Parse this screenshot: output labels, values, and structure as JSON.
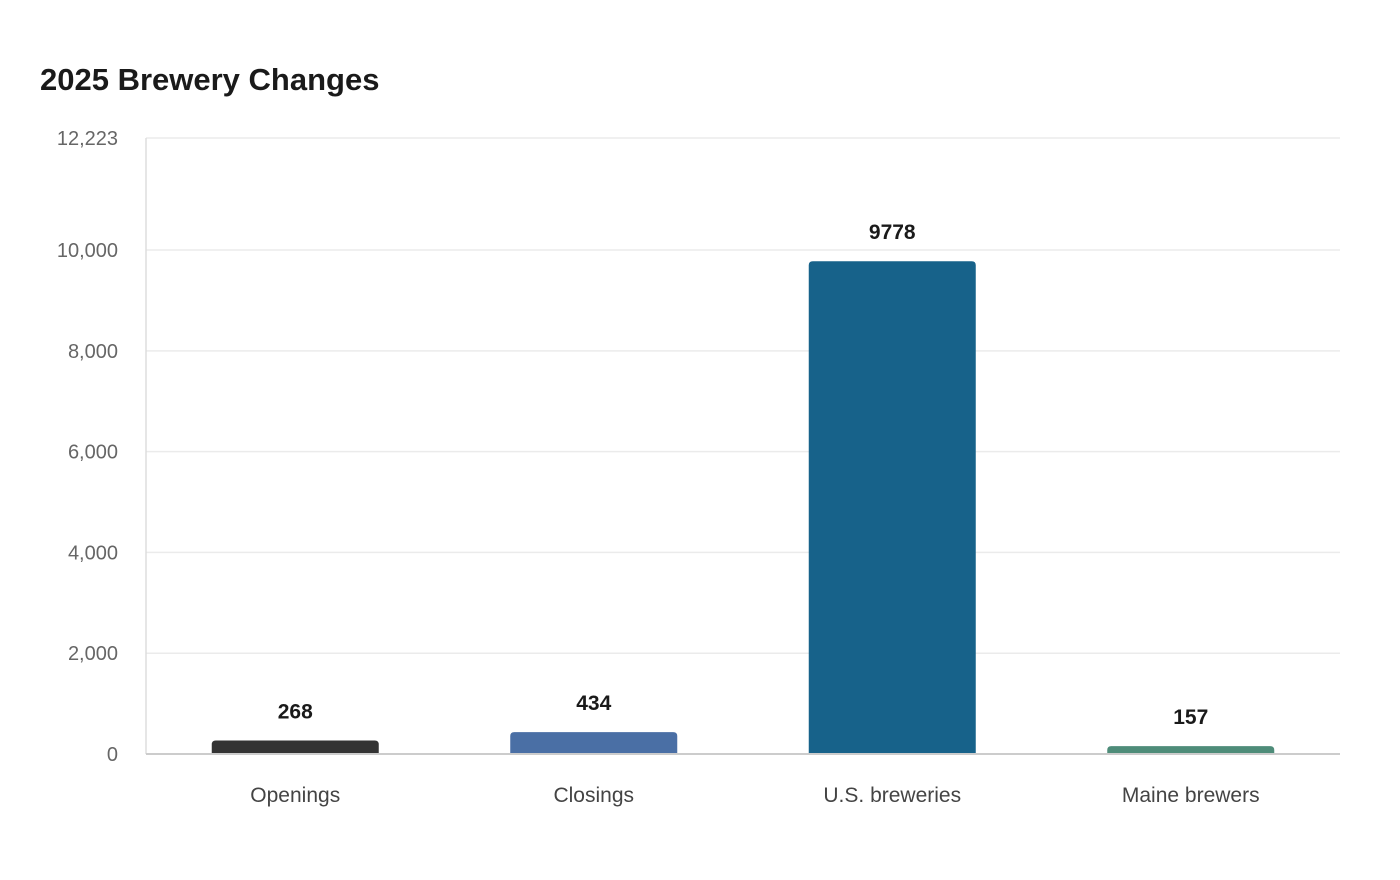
{
  "chart_data": {
    "type": "bar",
    "title": "2025 Brewery Changes",
    "xlabel": "",
    "ylabel": "",
    "categories": [
      "Openings",
      "Closings",
      "U.S. breweries",
      "Maine brewers"
    ],
    "values": [
      268,
      434,
      9778,
      157
    ],
    "data_labels": [
      "268",
      "434",
      "9778",
      "157"
    ],
    "colors": [
      "#333333",
      "#4a6fa5",
      "#17628a",
      "#4e8c79"
    ],
    "ylim": [
      0,
      12223
    ],
    "yticks": [
      0,
      2000,
      4000,
      6000,
      8000,
      10000,
      12223
    ],
    "ytick_labels": [
      "0",
      "2,000",
      "4,000",
      "6,000",
      "8,000",
      "10,000",
      "12,223"
    ],
    "grid": true,
    "legend": "none"
  }
}
